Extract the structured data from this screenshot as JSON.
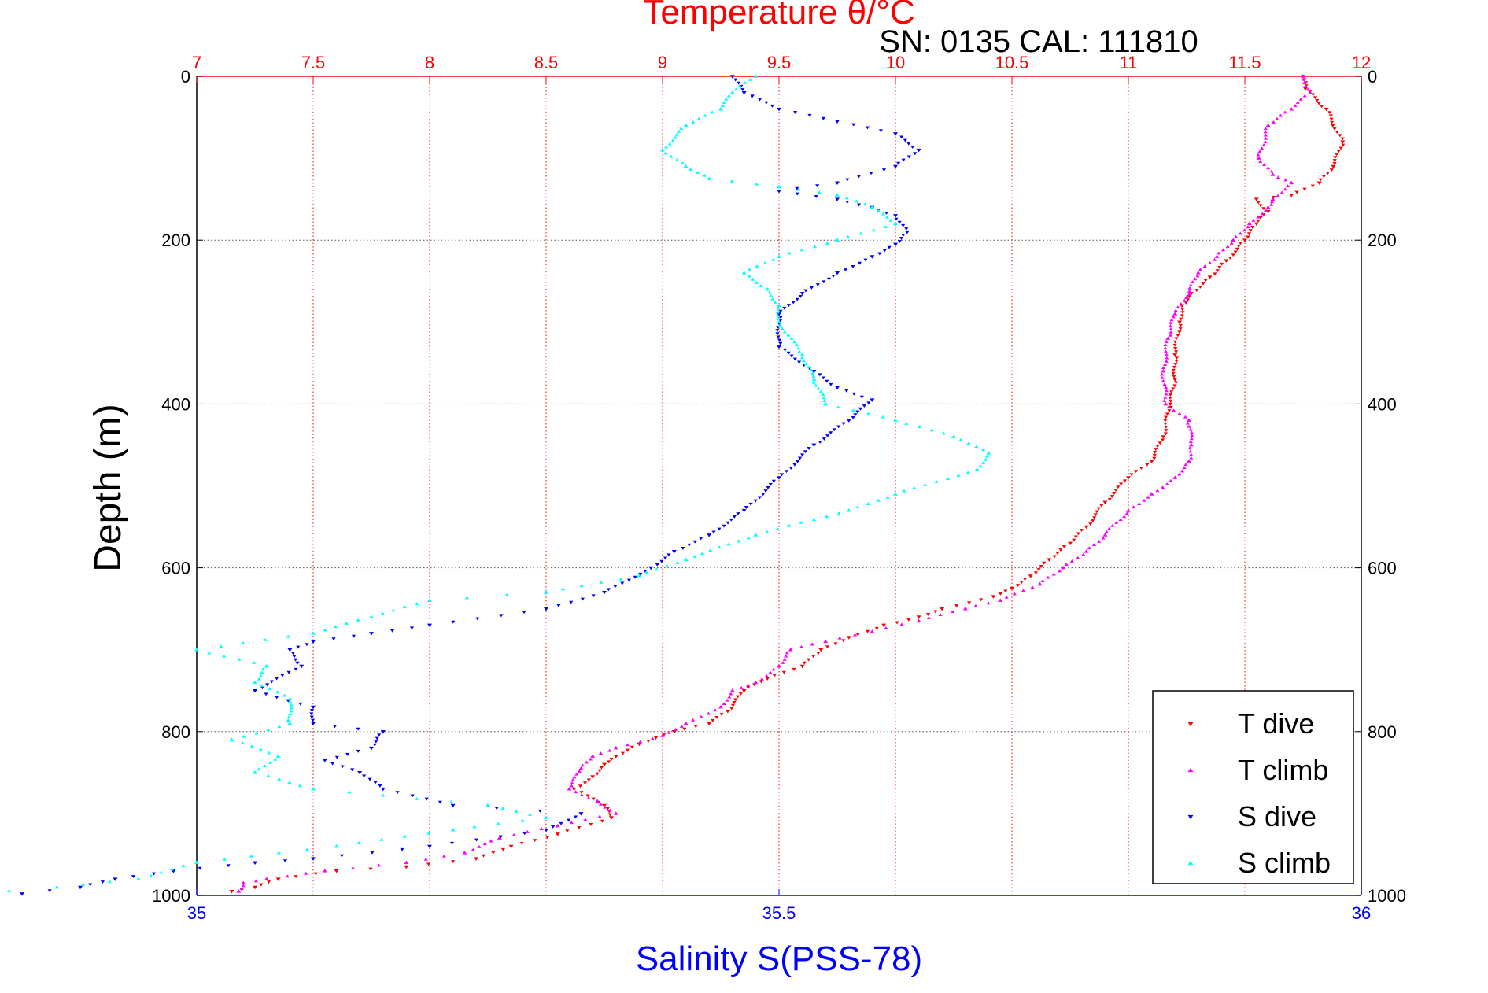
{
  "chart_data": {
    "type": "scatter",
    "title": "Temperature θ/°C",
    "subtitle": "SN: 0135  CAL: 111810",
    "ylabel": "Depth (m)",
    "xlabel": "Salinity S(PSS-78)",
    "y_axis": {
      "range": [
        0,
        1000
      ],
      "reversed": true,
      "ticks": [
        0,
        200,
        400,
        600,
        800,
        1000
      ],
      "tick_labels": [
        "0",
        "200",
        "400",
        "600",
        "800",
        "1000"
      ]
    },
    "x_temperature_axis": {
      "position": "top",
      "range": [
        7,
        12
      ],
      "ticks": [
        7,
        7.5,
        8,
        8.5,
        9,
        9.5,
        10,
        10.5,
        11,
        11.5,
        12
      ],
      "tick_labels": [
        "7",
        "7.5",
        "8",
        "8.5",
        "9",
        "9.5",
        "10",
        "10.5",
        "11",
        "11.5",
        "12"
      ],
      "color": "#ff0000"
    },
    "x_salinity_axis": {
      "position": "bottom",
      "range": [
        35,
        36
      ],
      "ticks": [
        35,
        35.5,
        36
      ],
      "tick_labels": [
        "35",
        "35.5",
        "36"
      ],
      "color": "#0000ff"
    },
    "grid": true,
    "legend": {
      "position": "bottom-right",
      "entries": [
        "T dive",
        "T climb",
        "S dive",
        "S climb"
      ]
    },
    "series": [
      {
        "name": "T dive",
        "axis": "temperature",
        "color": "#ff0000",
        "marker": "triangle-down",
        "points": [
          [
            11.75,
            0
          ],
          [
            11.76,
            15
          ],
          [
            11.85,
            40
          ],
          [
            11.92,
            80
          ],
          [
            11.88,
            110
          ],
          [
            11.82,
            130
          ],
          [
            11.7,
            145
          ],
          [
            11.55,
            150
          ],
          [
            11.6,
            165
          ],
          [
            11.55,
            180
          ],
          [
            11.5,
            200
          ],
          [
            11.42,
            225
          ],
          [
            11.35,
            245
          ],
          [
            11.27,
            265
          ],
          [
            11.23,
            280
          ],
          [
            11.22,
            300
          ],
          [
            11.2,
            340
          ],
          [
            11.2,
            370
          ],
          [
            11.18,
            400
          ],
          [
            11.15,
            440
          ],
          [
            11.1,
            470
          ],
          [
            11.0,
            490
          ],
          [
            10.9,
            520
          ],
          [
            10.82,
            550
          ],
          [
            10.75,
            570
          ],
          [
            10.66,
            590
          ],
          [
            10.58,
            610
          ],
          [
            10.5,
            625
          ],
          [
            10.42,
            635
          ],
          [
            10.2,
            650
          ],
          [
            10.1,
            660
          ],
          [
            9.95,
            670
          ],
          [
            9.8,
            685
          ],
          [
            9.68,
            700
          ],
          [
            9.6,
            720
          ],
          [
            9.45,
            735
          ],
          [
            9.35,
            750
          ],
          [
            9.28,
            775
          ],
          [
            9.2,
            790
          ],
          [
            9.05,
            800
          ],
          [
            8.9,
            815
          ],
          [
            8.8,
            830
          ],
          [
            8.75,
            840
          ],
          [
            8.7,
            855
          ],
          [
            8.62,
            870
          ],
          [
            8.75,
            890
          ],
          [
            8.78,
            905
          ],
          [
            8.55,
            925
          ],
          [
            8.35,
            940
          ],
          [
            8.2,
            955
          ],
          [
            7.9,
            965
          ],
          [
            7.6,
            970
          ],
          [
            7.35,
            980
          ],
          [
            7.25,
            990
          ],
          [
            7.15,
            995
          ]
        ]
      },
      {
        "name": "T climb",
        "axis": "temperature",
        "color": "#ff00ff",
        "marker": "triangle-up",
        "points": [
          [
            11.75,
            0
          ],
          [
            11.78,
            20
          ],
          [
            11.7,
            40
          ],
          [
            11.6,
            60
          ],
          [
            11.56,
            100
          ],
          [
            11.62,
            120
          ],
          [
            11.7,
            130
          ],
          [
            11.62,
            150
          ],
          [
            11.6,
            160
          ],
          [
            11.52,
            180
          ],
          [
            11.45,
            200
          ],
          [
            11.38,
            220
          ],
          [
            11.3,
            240
          ],
          [
            11.25,
            270
          ],
          [
            11.2,
            290
          ],
          [
            11.17,
            320
          ],
          [
            11.15,
            360
          ],
          [
            11.16,
            400
          ],
          [
            11.26,
            420
          ],
          [
            11.27,
            450
          ],
          [
            11.26,
            470
          ],
          [
            11.2,
            490
          ],
          [
            11.1,
            510
          ],
          [
            11.0,
            530
          ],
          [
            10.9,
            560
          ],
          [
            10.82,
            580
          ],
          [
            10.72,
            600
          ],
          [
            10.62,
            620
          ],
          [
            10.45,
            640
          ],
          [
            10.3,
            650
          ],
          [
            10.1,
            665
          ],
          [
            9.9,
            678
          ],
          [
            9.7,
            690
          ],
          [
            9.55,
            700
          ],
          [
            9.5,
            720
          ],
          [
            9.4,
            740
          ],
          [
            9.3,
            750
          ],
          [
            9.25,
            770
          ],
          [
            9.1,
            790
          ],
          [
            9.0,
            805
          ],
          [
            8.8,
            820
          ],
          [
            8.7,
            830
          ],
          [
            8.65,
            845
          ],
          [
            8.6,
            870
          ],
          [
            8.72,
            885
          ],
          [
            8.8,
            900
          ],
          [
            8.55,
            915
          ],
          [
            8.3,
            930
          ],
          [
            8.15,
            948
          ],
          [
            7.9,
            960
          ],
          [
            7.55,
            970
          ],
          [
            7.3,
            980
          ],
          [
            7.2,
            985
          ],
          [
            7.18,
            995
          ]
        ]
      },
      {
        "name": "S dive",
        "axis": "salinity",
        "color": "#0000ff",
        "marker": "triangle-down",
        "points": [
          [
            35.46,
            0
          ],
          [
            35.47,
            20
          ],
          [
            35.5,
            40
          ],
          [
            35.55,
            55
          ],
          [
            35.6,
            70
          ],
          [
            35.62,
            90
          ],
          [
            35.6,
            110
          ],
          [
            35.55,
            130
          ],
          [
            35.5,
            140
          ],
          [
            35.55,
            150
          ],
          [
            35.58,
            160
          ],
          [
            35.6,
            170
          ],
          [
            35.61,
            190
          ],
          [
            35.6,
            205
          ],
          [
            35.58,
            220
          ],
          [
            35.55,
            240
          ],
          [
            35.52,
            265
          ],
          [
            35.5,
            290
          ],
          [
            35.5,
            330
          ],
          [
            35.53,
            360
          ],
          [
            35.55,
            380
          ],
          [
            35.58,
            395
          ],
          [
            35.56,
            420
          ],
          [
            35.53,
            450
          ],
          [
            35.5,
            490
          ],
          [
            35.47,
            530
          ],
          [
            35.44,
            560
          ],
          [
            35.41,
            580
          ],
          [
            35.39,
            600
          ],
          [
            35.35,
            630
          ],
          [
            35.3,
            650
          ],
          [
            35.2,
            670
          ],
          [
            35.15,
            680
          ],
          [
            35.1,
            690
          ],
          [
            35.08,
            700
          ],
          [
            35.09,
            720
          ],
          [
            35.05,
            750
          ],
          [
            35.1,
            770
          ],
          [
            35.1,
            790
          ],
          [
            35.16,
            800
          ],
          [
            35.15,
            820
          ],
          [
            35.11,
            835
          ],
          [
            35.14,
            850
          ],
          [
            35.16,
            870
          ],
          [
            35.22,
            890
          ],
          [
            35.33,
            900
          ],
          [
            35.3,
            920
          ],
          [
            35.2,
            940
          ],
          [
            35.1,
            955
          ],
          [
            35.05,
            960
          ],
          [
            34.98,
            970
          ],
          [
            34.93,
            980
          ],
          [
            34.9,
            990
          ],
          [
            34.85,
            998
          ]
        ]
      },
      {
        "name": "S climb",
        "axis": "salinity",
        "color": "#00ffff",
        "marker": "triangle-up",
        "points": [
          [
            35.48,
            0
          ],
          [
            35.46,
            20
          ],
          [
            35.45,
            40
          ],
          [
            35.42,
            60
          ],
          [
            35.4,
            90
          ],
          [
            35.42,
            110
          ],
          [
            35.44,
            125
          ],
          [
            35.5,
            135
          ],
          [
            35.55,
            145
          ],
          [
            35.58,
            160
          ],
          [
            35.6,
            180
          ],
          [
            35.55,
            200
          ],
          [
            35.5,
            220
          ],
          [
            35.47,
            240
          ],
          [
            35.49,
            260
          ],
          [
            35.5,
            280
          ],
          [
            35.5,
            300
          ],
          [
            35.52,
            340
          ],
          [
            35.53,
            370
          ],
          [
            35.54,
            400
          ],
          [
            35.6,
            420
          ],
          [
            35.65,
            440
          ],
          [
            35.68,
            460
          ],
          [
            35.67,
            480
          ],
          [
            35.6,
            510
          ],
          [
            35.56,
            530
          ],
          [
            35.48,
            560
          ],
          [
            35.42,
            590
          ],
          [
            35.38,
            610
          ],
          [
            35.3,
            630
          ],
          [
            35.2,
            640
          ],
          [
            35.15,
            660
          ],
          [
            35.1,
            680
          ],
          [
            35.0,
            700
          ],
          [
            35.06,
            720
          ],
          [
            35.05,
            740
          ],
          [
            35.08,
            760
          ],
          [
            35.08,
            790
          ],
          [
            35.03,
            810
          ],
          [
            35.07,
            830
          ],
          [
            35.05,
            850
          ],
          [
            35.1,
            870
          ],
          [
            35.25,
            890
          ],
          [
            35.3,
            905
          ],
          [
            35.22,
            920
          ],
          [
            35.12,
            940
          ],
          [
            35.0,
            960
          ],
          [
            34.95,
            980
          ],
          [
            34.88,
            990
          ],
          [
            34.8,
            999
          ]
        ]
      }
    ]
  }
}
